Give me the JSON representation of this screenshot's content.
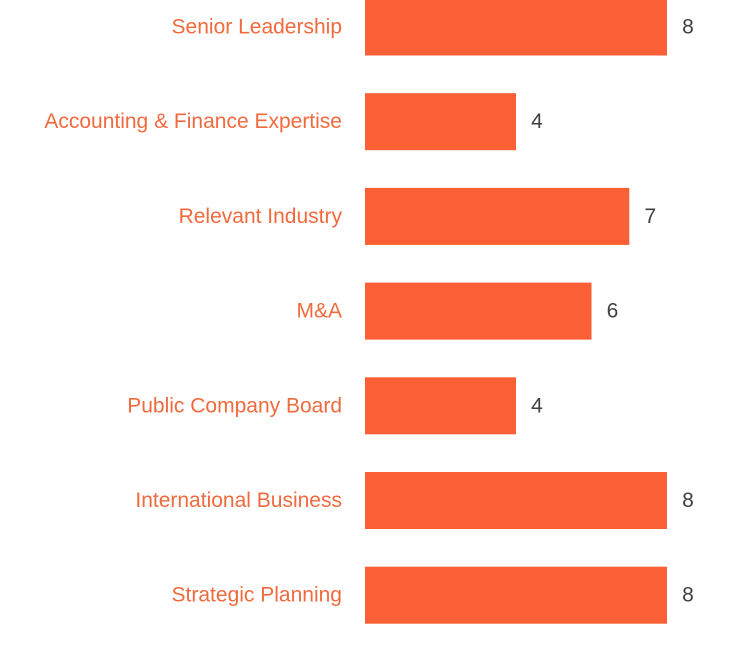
{
  "colors": {
    "bar": "#fa5f35",
    "category_label": "#f06a3e",
    "value_label": "#404040"
  },
  "chart_data": {
    "type": "bar",
    "orientation": "horizontal",
    "categories": [
      "Senior Leadership",
      "Accounting & Finance Expertise",
      "Relevant Industry",
      "M&A",
      "Public Company Board",
      "International Business",
      "Strategic Planning"
    ],
    "values": [
      8,
      4,
      7,
      6,
      4,
      8,
      8
    ],
    "title": "",
    "xlabel": "",
    "ylabel": "",
    "xlim": [
      0,
      8
    ],
    "grid": false,
    "legend": "none",
    "data_labels": true
  }
}
